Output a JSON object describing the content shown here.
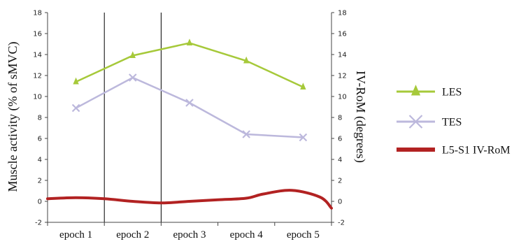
{
  "chart_data": {
    "type": "line",
    "categories": [
      "epoch 1",
      "epoch 2",
      "epoch 3",
      "epoch 4",
      "epoch 5"
    ],
    "ylabel": "Muscle activity (% of sMVC)",
    "y2label": "IV-RoM (degrees)",
    "ylim": [
      -2,
      18
    ],
    "y2lim": [
      -2,
      18
    ],
    "yticks": [
      -2,
      0,
      2,
      4,
      6,
      8,
      10,
      12,
      14,
      16,
      18
    ],
    "vertical_lines_at": [
      "epoch 2",
      "epoch 3"
    ],
    "legend_position": "right",
    "series": [
      {
        "name": "LES",
        "axis": "left",
        "marker": "triangle",
        "color": "#a6c93a",
        "values": [
          11.4,
          13.9,
          15.1,
          13.4,
          10.9
        ]
      },
      {
        "name": "TES",
        "axis": "left",
        "marker": "x",
        "color": "#bcb8dc",
        "values": [
          8.9,
          11.8,
          9.4,
          6.4,
          6.1
        ]
      },
      {
        "name": "L5-S1 IV-RoM",
        "axis": "right",
        "marker": "none",
        "smooth": true,
        "color": "#b22222",
        "x": [
          0,
          0.5,
          1,
          1.5,
          2,
          2.5,
          3,
          3.5,
          3.8,
          4.3,
          4.8,
          5
        ],
        "values": [
          0.25,
          0.35,
          0.25,
          0.0,
          -0.15,
          0.0,
          0.15,
          0.3,
          0.7,
          1.05,
          0.4,
          -0.65
        ]
      }
    ]
  }
}
